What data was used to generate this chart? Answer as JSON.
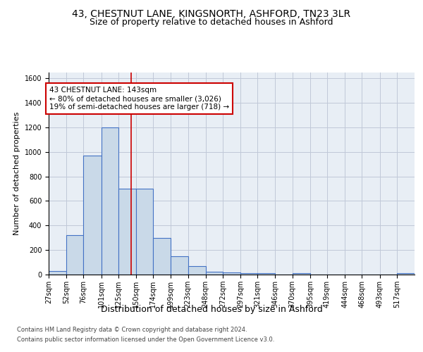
{
  "title1": "43, CHESTNUT LANE, KINGSNORTH, ASHFORD, TN23 3LR",
  "title2": "Size of property relative to detached houses in Ashford",
  "xlabel": "Distribution of detached houses by size in Ashford",
  "ylabel": "Number of detached properties",
  "bin_labels": [
    "27sqm",
    "52sqm",
    "76sqm",
    "101sqm",
    "125sqm",
    "150sqm",
    "174sqm",
    "199sqm",
    "223sqm",
    "248sqm",
    "272sqm",
    "297sqm",
    "321sqm",
    "346sqm",
    "370sqm",
    "395sqm",
    "419sqm",
    "444sqm",
    "468sqm",
    "493sqm",
    "517sqm"
  ],
  "bin_edges": [
    27,
    52,
    76,
    101,
    125,
    150,
    174,
    199,
    223,
    248,
    272,
    297,
    321,
    346,
    370,
    395,
    419,
    444,
    468,
    493,
    517,
    542
  ],
  "bar_heights": [
    30,
    320,
    970,
    1200,
    700,
    700,
    300,
    150,
    70,
    25,
    15,
    12,
    10,
    0,
    10,
    0,
    0,
    0,
    0,
    0,
    10
  ],
  "bar_facecolor": "#c9d9e8",
  "bar_edgecolor": "#4472c4",
  "bar_linewidth": 0.8,
  "grid_color": "#c0c8d8",
  "background_color": "#e8eef5",
  "red_line_x": 143,
  "red_line_color": "#cc0000",
  "annotation_line1": "43 CHESTNUT LANE: 143sqm",
  "annotation_line2": "← 80% of detached houses are smaller (3,026)",
  "annotation_line3": "19% of semi-detached houses are larger (718) →",
  "annotation_box_color": "#cc0000",
  "ylim": [
    0,
    1650
  ],
  "yticks": [
    0,
    200,
    400,
    600,
    800,
    1000,
    1200,
    1400,
    1600
  ],
  "footnote1": "Contains HM Land Registry data © Crown copyright and database right 2024.",
  "footnote2": "Contains public sector information licensed under the Open Government Licence v3.0.",
  "title_fontsize": 10,
  "subtitle_fontsize": 9,
  "xlabel_fontsize": 9,
  "ylabel_fontsize": 8,
  "tick_fontsize": 7,
  "annotation_fontsize": 7.5,
  "footnote_fontsize": 6
}
